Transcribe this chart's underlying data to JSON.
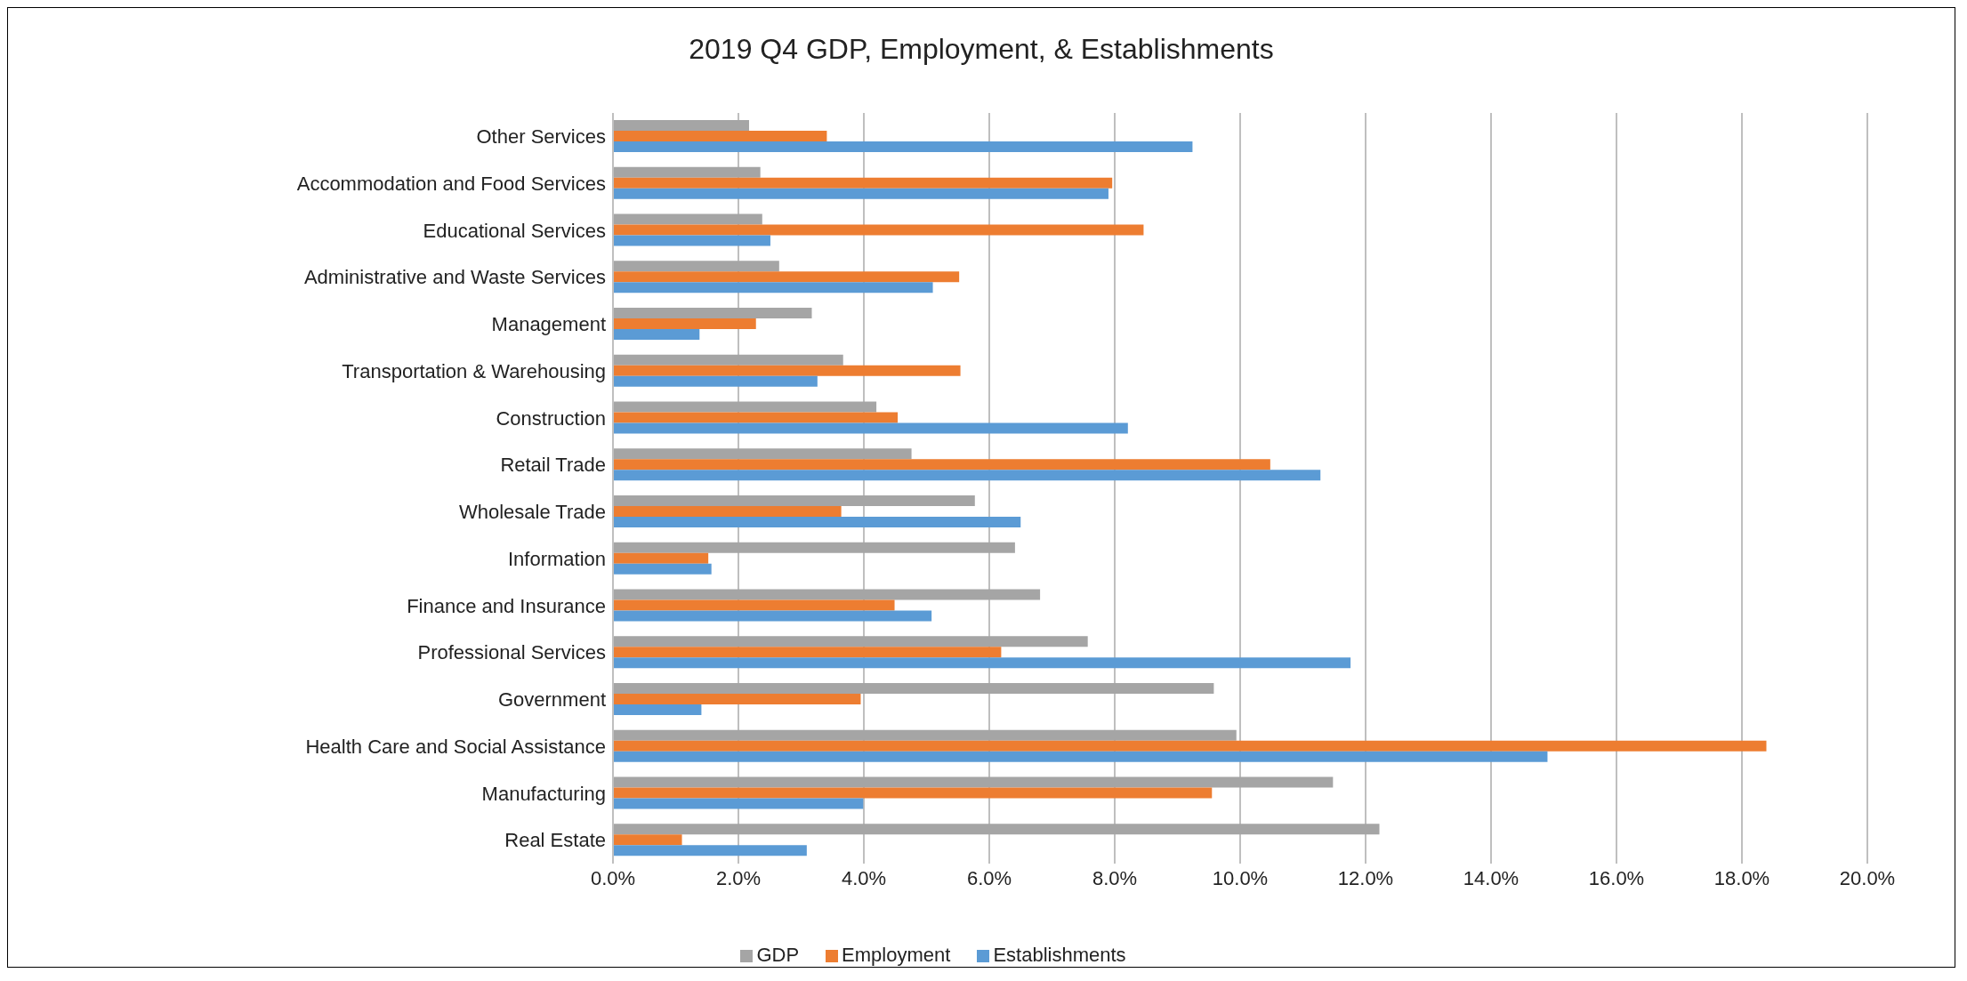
{
  "chart_data": {
    "type": "bar",
    "orientation": "horizontal",
    "title": "2019 Q4 GDP, Employment, & Establishments",
    "categories": [
      "Other Services",
      "Accommodation and Food Services",
      "Educational Services",
      "Administrative and Waste Services",
      "Management",
      "Transportation & Warehousing",
      "Construction",
      "Retail Trade",
      "Wholesale Trade",
      "Information",
      "Finance and Insurance",
      "Professional Services",
      "Government",
      "Health Care and Social Assistance",
      "Manufacturing",
      "Real Estate"
    ],
    "series": [
      {
        "name": "GDP",
        "color": "#a5a5a5",
        "values": [
          2.17,
          2.35,
          2.38,
          2.65,
          3.17,
          3.67,
          4.2,
          4.76,
          5.77,
          6.41,
          6.81,
          7.57,
          9.58,
          9.94,
          11.48,
          12.22
        ]
      },
      {
        "name": "Employment",
        "color": "#ed7d31",
        "values": [
          3.41,
          7.96,
          8.46,
          5.52,
          2.28,
          5.54,
          4.54,
          10.48,
          3.64,
          1.52,
          4.49,
          6.19,
          3.95,
          18.39,
          9.55,
          1.1
        ]
      },
      {
        "name": "Establishments",
        "color": "#5b9bd5",
        "values": [
          9.24,
          7.9,
          2.51,
          5.1,
          1.38,
          3.26,
          8.21,
          11.28,
          6.5,
          1.57,
          5.08,
          11.76,
          1.41,
          14.9,
          3.99,
          3.09
        ]
      }
    ],
    "xlim": [
      0,
      20
    ],
    "xticks": [
      {
        "value": 0,
        "label": "0.0%"
      },
      {
        "value": 2,
        "label": "2.0%"
      },
      {
        "value": 4,
        "label": "4.0%"
      },
      {
        "value": 6,
        "label": "6.0%"
      },
      {
        "value": 8,
        "label": "8.0%"
      },
      {
        "value": 10,
        "label": "10.0%"
      },
      {
        "value": 12,
        "label": "12.0%"
      },
      {
        "value": 14,
        "label": "14.0%"
      },
      {
        "value": 16,
        "label": "16.0%"
      },
      {
        "value": 18,
        "label": "18.0%"
      },
      {
        "value": 20,
        "label": "20.0%"
      }
    ],
    "grid": "x",
    "legend": "bottom"
  }
}
